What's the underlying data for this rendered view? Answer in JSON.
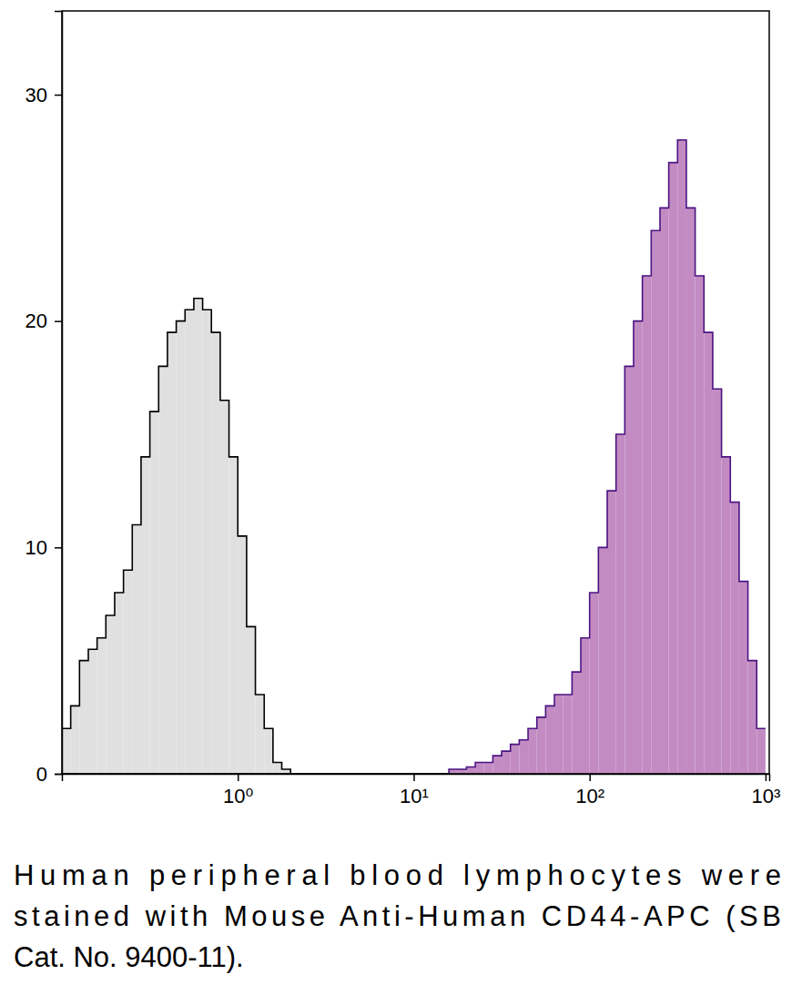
{
  "chart_data": {
    "type": "histogram",
    "caption": [
      "Human peripheral blood lymphocytes were",
      "stained with Mouse Anti-Human CD44-APC (SB",
      "Cat. No. 9400-11)."
    ],
    "log": "x",
    "xlim": [
      0.1,
      1050
    ],
    "ylim": [
      0,
      33.7
    ],
    "xticks": [
      {
        "value": 1,
        "label": "10⁰"
      },
      {
        "value": 10,
        "label": "10¹"
      },
      {
        "value": 100,
        "label": "10²"
      },
      {
        "value": 1000,
        "label": "10³"
      }
    ],
    "yticks": [
      0,
      10,
      20,
      30
    ],
    "bins": [
      0.1,
      0.1122,
      0.1259,
      0.1413,
      0.1585,
      0.1778,
      0.1995,
      0.2239,
      0.2512,
      0.2818,
      0.3162,
      0.3548,
      0.3981,
      0.4467,
      0.5012,
      0.5623,
      0.631,
      0.7079,
      0.7943,
      0.8913,
      1,
      1.122,
      1.259,
      1.413,
      1.585,
      1.778,
      1.995,
      2.239,
      2.512,
      2.818,
      3.162,
      3.548,
      3.981,
      4.467,
      5.012,
      5.623,
      6.31,
      7.079,
      7.943,
      8.913,
      10,
      11.22,
      12.59,
      14.13,
      15.85,
      17.78,
      19.95,
      22.39,
      25.12,
      28.18,
      31.62,
      35.48,
      39.81,
      44.67,
      50.12,
      56.23,
      63.1,
      70.79,
      79.43,
      89.13,
      100,
      112.2,
      125.9,
      141.3,
      158.5,
      177.8,
      199.5,
      223.9,
      251.2,
      281.8,
      316.2,
      354.8,
      398.1,
      446.7,
      501.2,
      562.3,
      631,
      707.9,
      794.3,
      891.3,
      1000
    ],
    "series": [
      {
        "color": "#e0e0e0",
        "values": [
          2,
          3,
          5,
          5.5,
          6,
          7,
          8,
          9,
          11,
          14,
          16,
          18,
          19.5,
          20,
          20.5,
          21,
          20.5,
          19.5,
          16.5,
          14,
          10.5,
          6.5,
          3.5,
          2,
          0.5,
          0.2,
          0,
          0,
          0,
          0,
          0,
          0,
          0,
          0,
          0,
          0,
          0,
          0,
          0,
          0,
          0,
          0,
          0,
          0,
          0,
          0,
          0,
          0,
          0,
          0,
          0,
          0,
          0,
          0,
          0,
          0,
          0,
          0,
          0,
          0,
          0,
          0,
          0,
          0,
          0,
          0,
          0,
          0,
          0,
          0,
          0,
          0,
          0,
          0,
          0,
          0,
          0,
          0,
          0,
          0
        ]
      },
      {
        "color": "#c28cc3",
        "values": [
          0,
          0,
          0,
          0,
          0,
          0,
          0,
          0,
          0,
          0,
          0,
          0,
          0,
          0,
          0,
          0,
          0,
          0,
          0,
          0,
          0,
          0,
          0,
          0,
          0,
          0,
          0,
          0,
          0,
          0,
          0,
          0,
          0,
          0,
          0,
          0,
          0,
          0,
          0,
          0,
          0,
          0,
          0,
          0,
          0.2,
          0.2,
          0.3,
          0.5,
          0.5,
          0.8,
          1,
          1.3,
          1.5,
          2,
          2.5,
          3,
          3.5,
          3.5,
          4.5,
          6,
          8,
          10,
          12.5,
          15,
          18,
          20,
          22,
          24,
          25,
          27,
          28,
          25,
          22,
          19.5,
          17,
          14,
          12,
          8.5,
          5,
          2
        ]
      }
    ]
  }
}
